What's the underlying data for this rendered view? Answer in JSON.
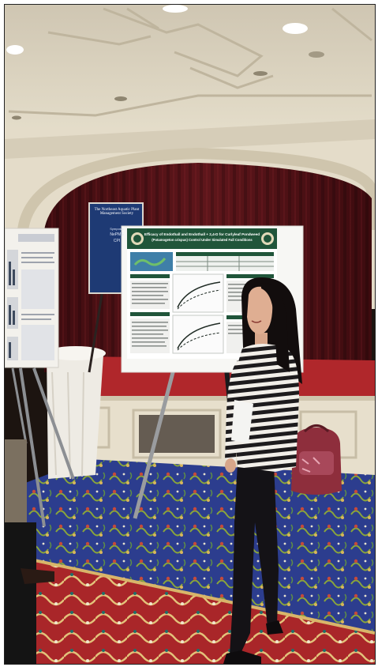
{
  "scene": {
    "colors": {
      "ceiling": "#d9d1bf",
      "curtain": "#5b1418",
      "stage_floor": "#b0272b",
      "carpet": "#2b3c8c",
      "runner": "#b22a2c",
      "poster_green": "#20553a"
    }
  },
  "poster_main": {
    "title_line1": "Efficacy of Endothall and Endothall + 2,4-D for Curlyleaf Pondweed",
    "title_line2": "(Potamogeton crispus) Control Under Simulated Fall Conditions"
  },
  "poster_back": {
    "title": "The Northeast Aquatic Plant Management Society",
    "line1": "Symposia",
    "line2": "NePMS",
    "line3": "CPI"
  }
}
